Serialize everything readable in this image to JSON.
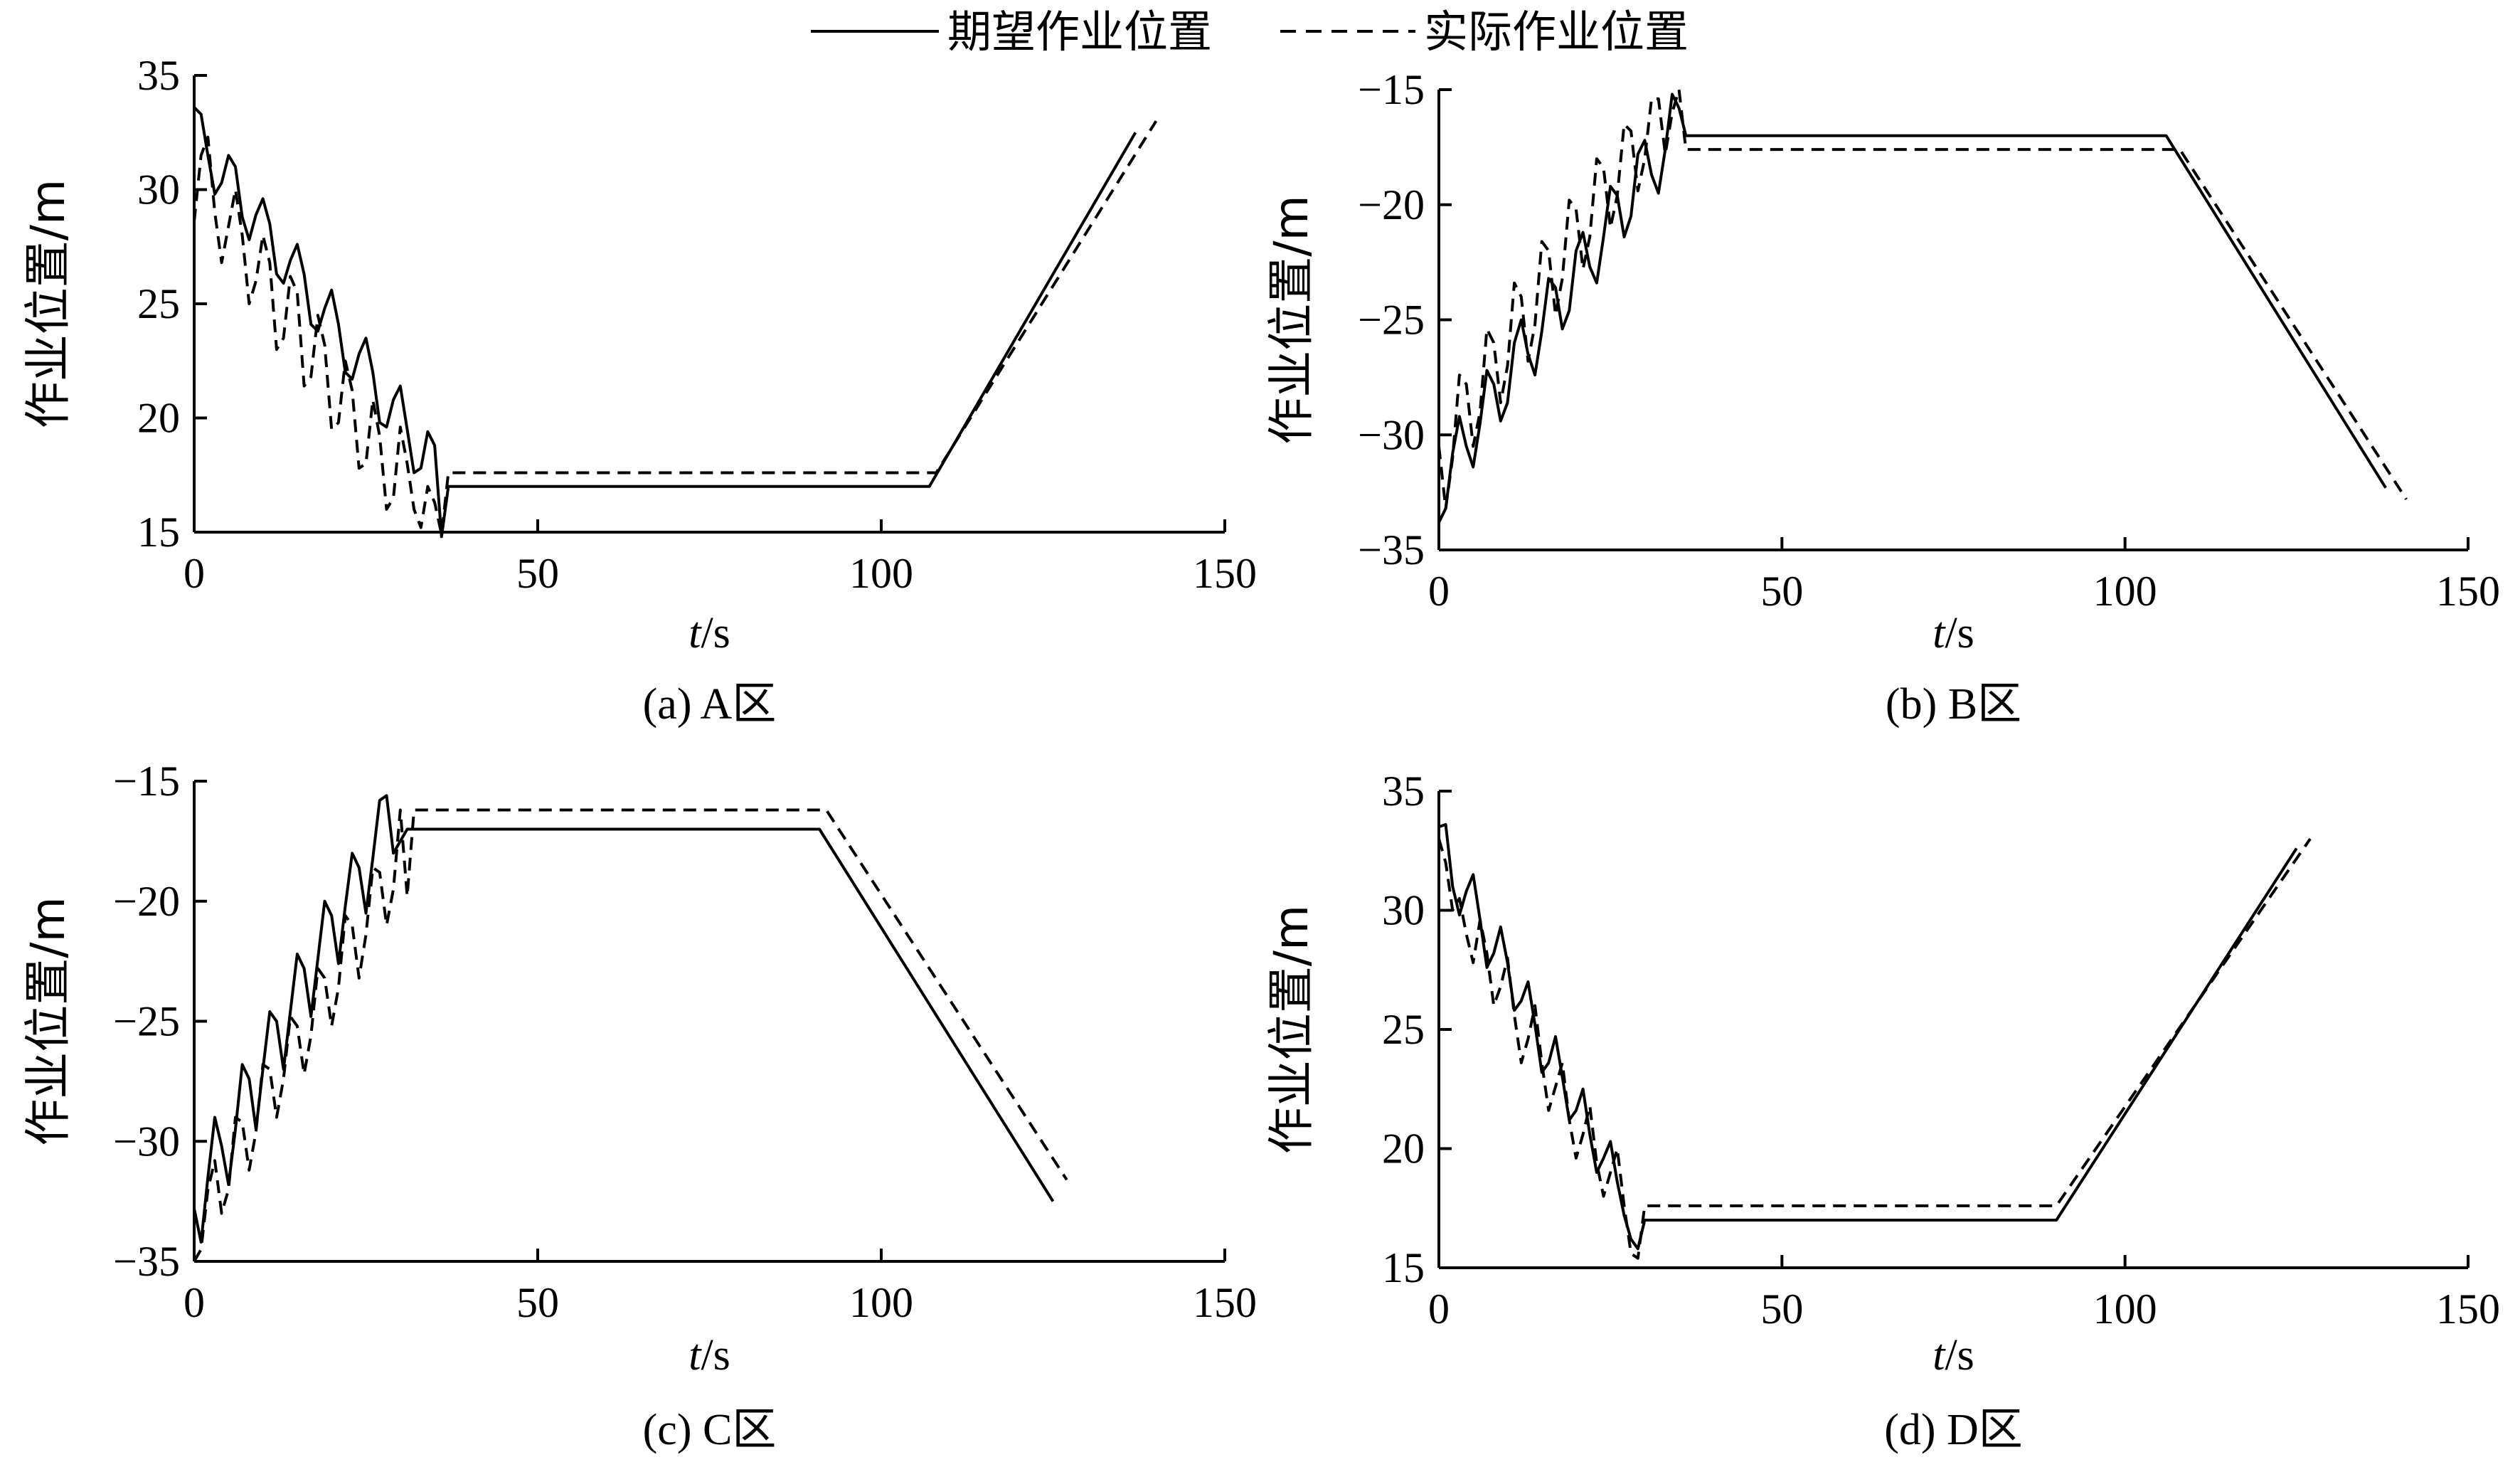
{
  "legend": {
    "expected_label": "期望作业位置",
    "actual_label": "实际作业位置"
  },
  "colors": {
    "line": "#000000",
    "background": "#ffffff"
  },
  "chart_data": [
    {
      "type": "line",
      "panel": "A",
      "caption": "(a) A区",
      "xlabel_italic": "t",
      "xlabel_unit": "/s",
      "ylabel": "作业位置/m",
      "xlim": [
        0,
        150
      ],
      "ylim": [
        15,
        35
      ],
      "xticks": [
        0,
        50,
        100,
        150
      ],
      "yticks": [
        15,
        20,
        25,
        30,
        35
      ],
      "series": [
        {
          "name": "期望作业位置",
          "style": "solid",
          "x": [
            0,
            1,
            2,
            3,
            4,
            5,
            6,
            7,
            8,
            9,
            10,
            11,
            12,
            13,
            14,
            15,
            16,
            17,
            18,
            19,
            20,
            21,
            22,
            23,
            24,
            25,
            26,
            27,
            28,
            29,
            30,
            31,
            32,
            33,
            34,
            35,
            36,
            37,
            107,
            137
          ],
          "y": [
            33.6,
            33.3,
            31.5,
            29.8,
            30.3,
            31.5,
            31.0,
            28.8,
            27.8,
            28.9,
            29.6,
            28.5,
            26.3,
            25.9,
            26.9,
            27.6,
            26.3,
            24.1,
            23.8,
            24.8,
            25.6,
            24.1,
            22.0,
            21.7,
            22.8,
            23.5,
            22.0,
            19.8,
            19.6,
            20.8,
            21.4,
            19.5,
            17.6,
            17.8,
            19.4,
            18.8,
            14.8,
            17.0,
            17.0,
            32.5
          ]
        },
        {
          "name": "实际作业位置",
          "style": "dashed",
          "x": [
            0,
            1,
            2,
            3,
            4,
            5,
            6,
            7,
            8,
            9,
            10,
            11,
            12,
            13,
            14,
            15,
            16,
            17,
            18,
            19,
            20,
            21,
            22,
            23,
            24,
            25,
            26,
            27,
            28,
            29,
            30,
            31,
            32,
            33,
            34,
            35,
            36,
            37,
            108,
            140
          ],
          "y": [
            28.6,
            31.5,
            32.3,
            29.0,
            26.8,
            28.4,
            30.0,
            28.0,
            25.0,
            26.0,
            28.0,
            26.8,
            23.0,
            23.5,
            26.2,
            25.5,
            21.4,
            21.8,
            24.5,
            23.2,
            19.5,
            19.8,
            22.5,
            21.2,
            17.8,
            18.0,
            20.8,
            19.2,
            16.0,
            16.5,
            19.6,
            18.0,
            16.0,
            15.2,
            17.0,
            16.3,
            14.9,
            17.6,
            17.6,
            33.0
          ]
        }
      ]
    },
    {
      "type": "line",
      "panel": "B",
      "caption": "(b) B区",
      "xlabel_italic": "t",
      "xlabel_unit": "/s",
      "ylabel": "作业位置/m",
      "xlim": [
        0,
        150
      ],
      "ylim": [
        -35,
        -15
      ],
      "xticks": [
        0,
        50,
        100,
        150
      ],
      "yticks": [
        -35,
        -30,
        -25,
        -20,
        -15
      ],
      "series": [
        {
          "name": "期望作业位置",
          "style": "solid",
          "x": [
            0,
            1,
            2,
            3,
            4,
            5,
            6,
            7,
            8,
            9,
            10,
            11,
            12,
            13,
            14,
            15,
            16,
            17,
            18,
            19,
            20,
            21,
            22,
            23,
            24,
            25,
            26,
            27,
            28,
            29,
            30,
            31,
            32,
            33,
            34,
            35,
            36,
            37,
            106,
            138
          ],
          "y": [
            -33.8,
            -33.2,
            -30.8,
            -29.2,
            -30.5,
            -31.4,
            -29.5,
            -27.2,
            -27.8,
            -29.4,
            -28.6,
            -26.0,
            -25.0,
            -26.5,
            -27.4,
            -25.5,
            -23.2,
            -23.6,
            -25.4,
            -24.6,
            -22.0,
            -21.2,
            -22.7,
            -23.4,
            -21.4,
            -19.2,
            -19.6,
            -21.4,
            -20.5,
            -17.8,
            -17.2,
            -18.7,
            -19.5,
            -17.6,
            -15.2,
            -15.8,
            -17.0,
            -17.0,
            -17.0,
            -32.3
          ]
        },
        {
          "name": "实际作业位置",
          "style": "dashed",
          "x": [
            0,
            1,
            2,
            3,
            4,
            5,
            6,
            7,
            8,
            9,
            10,
            11,
            12,
            13,
            14,
            15,
            16,
            17,
            18,
            19,
            20,
            21,
            22,
            23,
            24,
            25,
            26,
            27,
            28,
            29,
            30,
            31,
            32,
            33,
            34,
            35,
            36,
            37,
            108,
            141
          ],
          "y": [
            -30.5,
            -33.2,
            -31.0,
            -27.4,
            -27.8,
            -30.5,
            -29.0,
            -25.4,
            -26.0,
            -28.6,
            -27.0,
            -23.4,
            -24.0,
            -26.8,
            -25.2,
            -21.6,
            -22.0,
            -24.8,
            -23.2,
            -19.8,
            -20.2,
            -22.8,
            -21.4,
            -18.0,
            -18.4,
            -21.0,
            -19.6,
            -16.5,
            -16.8,
            -19.4,
            -18.0,
            -15.4,
            -15.4,
            -17.8,
            -16.0,
            -15.0,
            -17.6,
            -17.6,
            -17.6,
            -32.8
          ]
        }
      ]
    },
    {
      "type": "line",
      "panel": "C",
      "caption": "(c) C区",
      "xlabel_italic": "t",
      "xlabel_unit": "/s",
      "ylabel": "作业位置/m",
      "xlim": [
        0,
        150
      ],
      "ylim": [
        -35,
        -15
      ],
      "xticks": [
        0,
        50,
        100,
        150
      ],
      "yticks": [
        -35,
        -30,
        -25,
        -20,
        -15
      ],
      "series": [
        {
          "name": "期望作业位置",
          "style": "solid",
          "x": [
            0,
            1,
            2,
            3,
            4,
            5,
            6,
            7,
            8,
            9,
            10,
            11,
            12,
            13,
            14,
            15,
            16,
            17,
            18,
            19,
            20,
            21,
            22,
            23,
            24,
            25,
            26,
            27,
            28,
            29,
            30,
            31,
            32,
            33,
            34,
            91,
            125
          ],
          "y": [
            -32.8,
            -34.2,
            -31.5,
            -29.0,
            -30.2,
            -31.8,
            -29.5,
            -26.8,
            -27.4,
            -29.5,
            -27.0,
            -24.6,
            -25.0,
            -27.0,
            -24.6,
            -22.2,
            -22.8,
            -24.8,
            -22.4,
            -20.0,
            -20.6,
            -22.6,
            -20.2,
            -18.0,
            -18.6,
            -20.5,
            -18.2,
            -15.8,
            -15.6,
            -18.0,
            -17.5,
            -17.0,
            -17.0,
            -17.0,
            -17.0,
            -17.0,
            -32.5
          ]
        },
        {
          "name": "实际作业位置",
          "style": "dashed",
          "x": [
            0,
            1,
            2,
            3,
            4,
            5,
            6,
            7,
            8,
            9,
            10,
            11,
            12,
            13,
            14,
            15,
            16,
            17,
            18,
            19,
            20,
            21,
            22,
            23,
            24,
            25,
            26,
            27,
            28,
            29,
            30,
            31,
            32,
            33,
            92,
            127
          ],
          "y": [
            -35.0,
            -34.5,
            -32.0,
            -30.8,
            -33.0,
            -32.0,
            -29.0,
            -29.2,
            -31.2,
            -29.6,
            -26.8,
            -27.0,
            -29.0,
            -27.4,
            -24.8,
            -25.2,
            -27.2,
            -25.6,
            -22.8,
            -23.2,
            -25.2,
            -23.6,
            -20.6,
            -21.0,
            -23.2,
            -21.4,
            -18.6,
            -18.8,
            -21.0,
            -19.5,
            -16.2,
            -19.8,
            -16.2,
            -16.2,
            -16.2,
            -31.6
          ]
        }
      ]
    },
    {
      "type": "line",
      "panel": "D",
      "caption": "(d) D区",
      "xlabel_italic": "t",
      "xlabel_unit": "/s",
      "ylabel": "作业位置/m",
      "xlim": [
        0,
        150
      ],
      "ylim": [
        15,
        35
      ],
      "xticks": [
        0,
        50,
        100,
        150
      ],
      "yticks": [
        15,
        20,
        25,
        30,
        35
      ],
      "series": [
        {
          "name": "期望作业位置",
          "style": "solid",
          "x": [
            0,
            1,
            2,
            3,
            4,
            5,
            6,
            7,
            8,
            9,
            10,
            11,
            12,
            13,
            14,
            15,
            16,
            17,
            18,
            19,
            20,
            21,
            22,
            23,
            24,
            25,
            26,
            27,
            28,
            29,
            30,
            31,
            32,
            33,
            90,
            125
          ],
          "y": [
            33.5,
            33.6,
            31.0,
            29.8,
            30.8,
            31.5,
            29.6,
            27.6,
            28.2,
            29.3,
            27.8,
            25.8,
            26.2,
            27.0,
            25.2,
            23.2,
            23.6,
            24.7,
            23.0,
            21.2,
            21.6,
            22.5,
            20.6,
            19.0,
            19.6,
            20.3,
            18.6,
            17.2,
            16.2,
            15.8,
            17.0,
            17.0,
            17.0,
            17.0,
            17.0,
            32.6
          ]
        },
        {
          "name": "实际作业位置",
          "style": "dashed",
          "x": [
            0,
            1,
            2,
            3,
            4,
            5,
            6,
            7,
            8,
            9,
            10,
            11,
            12,
            13,
            14,
            15,
            16,
            17,
            18,
            19,
            20,
            21,
            22,
            23,
            24,
            25,
            26,
            27,
            28,
            29,
            30,
            31,
            32,
            33,
            90,
            127
          ],
          "y": [
            33.0,
            32.0,
            30.0,
            30.5,
            29.0,
            27.8,
            29.6,
            28.2,
            26.0,
            26.8,
            28.0,
            25.6,
            23.6,
            24.6,
            26.0,
            23.6,
            21.6,
            22.6,
            23.6,
            21.2,
            19.6,
            20.6,
            21.8,
            19.4,
            18.0,
            19.0,
            20.0,
            17.6,
            15.6,
            15.4,
            17.6,
            17.6,
            17.6,
            17.6,
            17.6,
            33.0
          ]
        }
      ]
    }
  ]
}
